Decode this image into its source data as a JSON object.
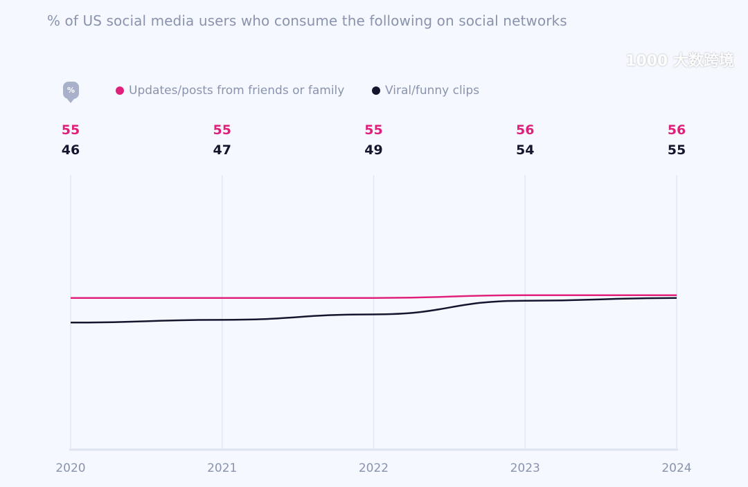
{
  "chart_data": {
    "type": "line",
    "title": "% of US social media users who consume the following on social networks",
    "unit_badge": "%",
    "x": [
      "2020",
      "2021",
      "2022",
      "2023",
      "2024"
    ],
    "series": [
      {
        "name": "Updates/posts from friends or family",
        "color": "#e0207a",
        "values": [
          55,
          55,
          55,
          56,
          56
        ]
      },
      {
        "name": "Viral/funny clips",
        "color": "#15152e",
        "values": [
          46,
          47,
          49,
          54,
          55
        ]
      }
    ],
    "ylim": [
      0,
      100
    ],
    "grid": "vertical",
    "legend": "top-left"
  },
  "watermark": "大数跨境"
}
